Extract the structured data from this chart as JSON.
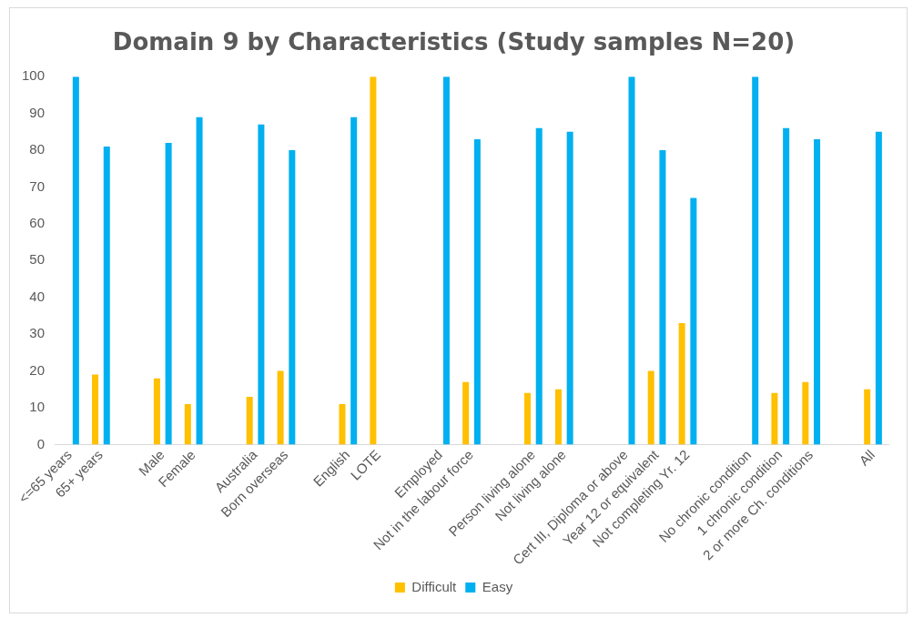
{
  "chart_data": {
    "type": "bar",
    "title": "Domain 9 by Characteristics (Study samples N=20)",
    "categories": [
      "<=65 years",
      "65+ years",
      null,
      "Male",
      "Female",
      null,
      "Australia",
      "Born overseas",
      null,
      "English",
      "LOTE",
      null,
      "Employed",
      "Not in the labour force",
      null,
      "Person living alone",
      "Not living alone",
      null,
      "Cert III, Diploma or above",
      "Year 12 or equivalent",
      "Not completing Yr. 12",
      null,
      "No chronic condition",
      "1 chronic condition",
      "2 or more Ch. conditions",
      null,
      "All"
    ],
    "series": [
      {
        "name": "Difficult",
        "color": "#ffc000",
        "values": [
          0,
          19,
          null,
          18,
          11,
          null,
          13,
          20,
          null,
          11,
          100,
          null,
          0,
          17,
          null,
          14,
          15,
          null,
          0,
          20,
          33,
          null,
          0,
          14,
          17,
          null,
          15
        ]
      },
      {
        "name": "Easy",
        "color": "#00b0f0",
        "values": [
          100,
          81,
          null,
          82,
          89,
          null,
          87,
          80,
          null,
          89,
          0,
          null,
          100,
          83,
          null,
          86,
          85,
          null,
          100,
          80,
          67,
          null,
          100,
          86,
          83,
          null,
          85
        ]
      }
    ],
    "ylim": [
      0,
      100
    ],
    "yticks": [
      0,
      10,
      20,
      30,
      40,
      50,
      60,
      70,
      80,
      90,
      100
    ],
    "grid": false,
    "legend": "bottom"
  }
}
